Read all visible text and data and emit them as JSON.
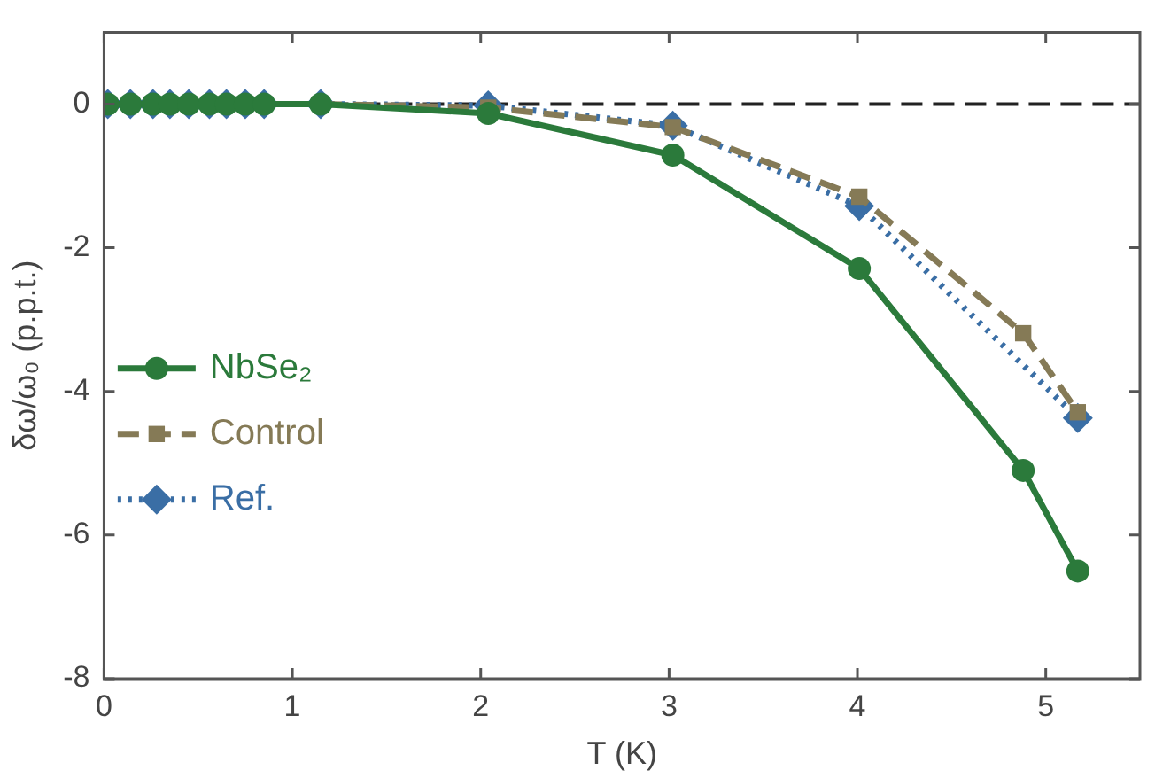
{
  "chart_data": {
    "type": "line",
    "xlabel": "T (K)",
    "ylabel": "δω/ω₀ (p.p.t.)",
    "xlim": [
      0,
      5.5
    ],
    "xticks": [
      0,
      1,
      2,
      3,
      4,
      5
    ],
    "ylim": [
      -8,
      1
    ],
    "yticks": [
      -8,
      -6,
      -4,
      -2,
      0
    ],
    "grid": false,
    "legend": "center left",
    "ref_lines": [
      {
        "axis": "y",
        "value": 0,
        "color": "#222222",
        "line_style": "dashed"
      }
    ],
    "series": [
      {
        "name": "NbSe₂",
        "color": "#2b7a3b",
        "marker": "circle",
        "line_style": "solid",
        "x": [
          0.02,
          0.14,
          0.26,
          0.35,
          0.45,
          0.56,
          0.65,
          0.75,
          0.85,
          1.15,
          2.04,
          3.02,
          4.01,
          4.88,
          5.17
        ],
        "values": [
          0,
          0,
          0,
          0,
          0,
          0,
          0,
          0,
          0,
          0,
          -0.13,
          -0.71,
          -2.29,
          -5.1,
          -6.5
        ]
      },
      {
        "name": "Control",
        "color": "#857a56",
        "marker": "square",
        "line_style": "dashed",
        "x": [
          1.15,
          2.04,
          3.02,
          4.01,
          4.88,
          5.17
        ],
        "values": [
          0,
          -0.05,
          -0.32,
          -1.29,
          -3.19,
          -4.29
        ]
      },
      {
        "name": "Ref.",
        "color": "#3a6ea5",
        "marker": "diamond",
        "line_style": "dotted",
        "x": [
          0.02,
          0.14,
          0.26,
          0.35,
          0.45,
          0.56,
          0.65,
          0.75,
          0.85,
          1.15,
          2.04,
          3.02,
          4.01,
          5.17
        ],
        "values": [
          0,
          0,
          0,
          0,
          0,
          0,
          0,
          0,
          0,
          0,
          -0.02,
          -0.3,
          -1.42,
          -4.37
        ]
      }
    ]
  }
}
